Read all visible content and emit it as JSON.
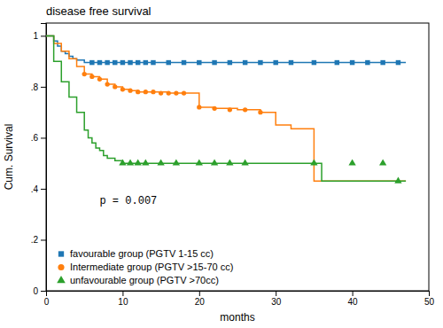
{
  "chart_data": {
    "type": "line",
    "title": "disease free survival",
    "x_label": "months",
    "y_label": "Cum. Survival",
    "xlim": [
      0,
      50
    ],
    "ylim": [
      0,
      1.05
    ],
    "xticks": [
      0,
      10,
      20,
      30,
      40,
      50
    ],
    "yticks": [
      0,
      {
        "value": 0.2,
        "label": ".2"
      },
      {
        "value": 0.4,
        "label": ".4"
      },
      {
        "value": 0.6,
        "label": ".6"
      },
      {
        "value": 0.8,
        "label": ".8"
      },
      1
    ],
    "legend": "lower left",
    "annotations": [
      {
        "text": "p = 0.007",
        "x": 7,
        "y": 0.34
      }
    ],
    "series": [
      {
        "name": "favourable group (PGTV 1-15 cc)",
        "marker": "square",
        "line_style": "step",
        "x": [
          0,
          1,
          1.5,
          2,
          2.5,
          3,
          3.5,
          4,
          5,
          47
        ],
        "values": [
          1.0,
          0.98,
          0.96,
          0.94,
          0.93,
          0.92,
          0.91,
          0.905,
          0.895,
          0.895
        ],
        "censor_x": [
          6,
          7,
          8,
          9,
          10,
          11,
          12,
          13,
          14,
          16,
          18,
          20,
          22,
          24,
          26,
          28,
          30,
          32,
          35,
          38,
          40,
          42,
          44,
          46
        ],
        "censor_values": [
          0.895,
          0.895,
          0.895,
          0.895,
          0.895,
          0.895,
          0.895,
          0.895,
          0.895,
          0.895,
          0.895,
          0.895,
          0.895,
          0.895,
          0.895,
          0.895,
          0.895,
          0.895,
          0.895,
          0.895,
          0.895,
          0.895,
          0.895,
          0.895
        ]
      },
      {
        "name": "Intermediate group (PGTV >15-70 cc)",
        "marker": "circle",
        "line_style": "step",
        "x": [
          0,
          1,
          2,
          3,
          4,
          5,
          6,
          7,
          8,
          9,
          10,
          11,
          12,
          14,
          16,
          18,
          20,
          22,
          25,
          28,
          30,
          32,
          35,
          47
        ],
        "values": [
          1.0,
          0.97,
          0.94,
          0.91,
          0.88,
          0.85,
          0.84,
          0.83,
          0.81,
          0.8,
          0.79,
          0.785,
          0.78,
          0.78,
          0.775,
          0.775,
          0.72,
          0.715,
          0.71,
          0.7,
          0.65,
          0.635,
          0.43,
          0.43
        ],
        "censor_x": [
          5,
          6,
          7,
          8,
          9,
          10,
          11,
          12,
          13,
          14,
          15,
          16,
          17,
          18,
          20,
          22,
          24,
          26,
          28
        ],
        "censor_values": [
          0.85,
          0.84,
          0.83,
          0.81,
          0.8,
          0.79,
          0.785,
          0.78,
          0.78,
          0.78,
          0.775,
          0.775,
          0.775,
          0.775,
          0.72,
          0.715,
          0.71,
          0.71,
          0.7
        ]
      },
      {
        "name": "unfavourable group (PGTV >70cc)",
        "marker": "triangle",
        "line_style": "step",
        "x": [
          0,
          1,
          2,
          3,
          4,
          5,
          5.5,
          6,
          6.5,
          7,
          7.5,
          8,
          9,
          10,
          12,
          35,
          36,
          47
        ],
        "values": [
          1.0,
          0.9,
          0.82,
          0.76,
          0.7,
          0.63,
          0.6,
          0.58,
          0.56,
          0.55,
          0.53,
          0.52,
          0.51,
          0.5,
          0.5,
          0.5,
          0.43,
          0.43
        ],
        "censor_x": [
          10,
          11,
          12,
          13,
          15,
          17,
          20,
          22,
          24,
          26,
          35,
          40,
          44,
          46
        ],
        "censor_values": [
          0.5,
          0.5,
          0.5,
          0.5,
          0.5,
          0.5,
          0.5,
          0.5,
          0.5,
          0.5,
          0.5,
          0.5,
          0.5,
          0.43
        ]
      }
    ]
  }
}
